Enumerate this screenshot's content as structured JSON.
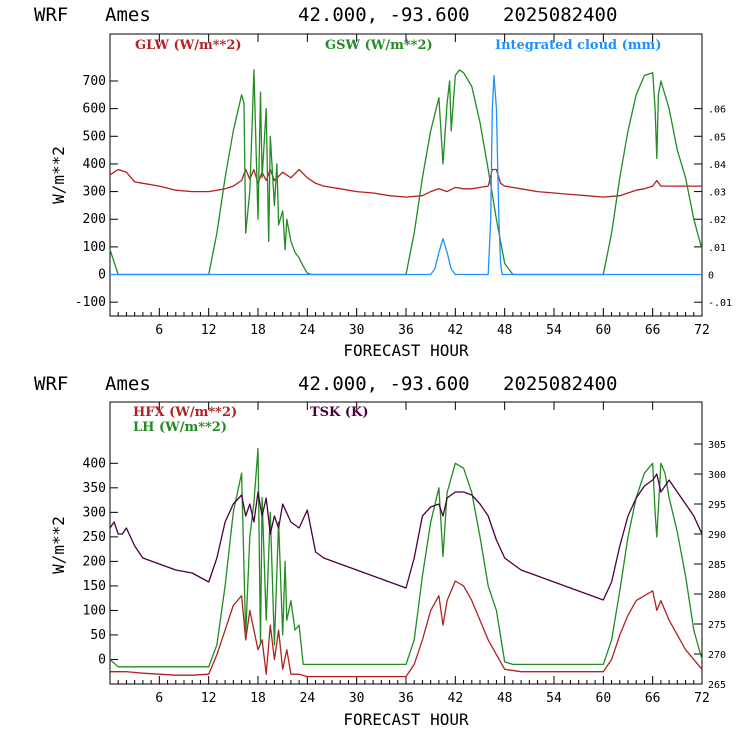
{
  "chart_data": [
    {
      "type": "line",
      "header": {
        "model": "WRF",
        "site": "Ames",
        "coords": "42.000, -93.600",
        "date": "2025082400"
      },
      "xlabel": "FORECAST HOUR",
      "ylabel": "W/m**2",
      "xlim": [
        0,
        72
      ],
      "x_ticks": [
        "6",
        "12",
        "18",
        "24",
        "30",
        "36",
        "42",
        "48",
        "54",
        "60",
        "66",
        "72"
      ],
      "ylim": [
        -150,
        870
      ],
      "y_ticks": [
        "-100",
        "0",
        "100",
        "200",
        "300",
        "400",
        "500",
        "600",
        "700"
      ],
      "y2lim": [
        -0.015,
        0.087
      ],
      "y2_ticks": [
        "-.01",
        "0",
        ".01",
        ".02",
        ".03",
        ".04",
        ".05",
        ".06"
      ],
      "legend": [
        "GLW (W/m**2)",
        "GSW (W/m**2)",
        "Integrated cloud (mm)"
      ],
      "series": [
        {
          "name": "GLW (W/m**2)",
          "color": "#b22222",
          "axis": "left",
          "x": [
            0,
            0.5,
            1,
            2,
            3,
            4,
            6,
            8,
            10,
            12,
            14,
            15,
            16,
            16.5,
            17,
            17.5,
            18,
            18.5,
            19,
            19.5,
            20,
            21,
            22,
            23,
            24,
            25,
            26,
            28,
            30,
            32,
            34,
            36,
            38,
            39,
            40,
            41,
            42,
            43,
            44,
            45,
            46,
            46.5,
            47,
            47.5,
            48,
            50,
            52,
            54,
            56,
            58,
            60,
            62,
            63,
            64,
            65,
            66,
            66.5,
            67,
            68,
            70,
            72
          ],
          "y": [
            360,
            370,
            380,
            370,
            335,
            330,
            320,
            305,
            300,
            300,
            310,
            320,
            340,
            380,
            345,
            380,
            330,
            370,
            340,
            380,
            340,
            370,
            350,
            380,
            350,
            330,
            320,
            310,
            300,
            295,
            285,
            280,
            285,
            300,
            310,
            300,
            315,
            310,
            310,
            315,
            320,
            380,
            380,
            330,
            320,
            310,
            300,
            295,
            290,
            285,
            280,
            285,
            295,
            305,
            310,
            320,
            340,
            320,
            320,
            320,
            320
          ]
        },
        {
          "name": "GSW (W/m**2)",
          "color": "#228b22",
          "axis": "left",
          "x": [
            0,
            1,
            2,
            3,
            4,
            5,
            6,
            7,
            8,
            9,
            10,
            11,
            12,
            13,
            14,
            15,
            16,
            16.3,
            16.5,
            17,
            17.3,
            17.5,
            18,
            18.3,
            18.5,
            19,
            19.3,
            19.5,
            20,
            20.3,
            20.5,
            21,
            21.3,
            21.5,
            22,
            22.5,
            23,
            23.5,
            24,
            24.5,
            25,
            26,
            28,
            30,
            32,
            34,
            36,
            37,
            38,
            39,
            40,
            40.5,
            41,
            41.3,
            41.5,
            42,
            42.5,
            43,
            44,
            45,
            46,
            47,
            48,
            49,
            50,
            51,
            52,
            54,
            56,
            58,
            60,
            61,
            62,
            63,
            64,
            65,
            66,
            66.3,
            66.5,
            66.7,
            67,
            67.5,
            68,
            69,
            70,
            71,
            72
          ],
          "y": [
            90,
            0,
            0,
            0,
            0,
            0,
            0,
            0,
            0,
            0,
            0,
            0,
            0,
            150,
            350,
            520,
            650,
            620,
            150,
            300,
            550,
            740,
            200,
            660,
            350,
            600,
            120,
            500,
            250,
            400,
            180,
            230,
            90,
            200,
            120,
            80,
            60,
            30,
            5,
            0,
            0,
            0,
            0,
            0,
            0,
            0,
            0,
            150,
            350,
            520,
            640,
            400,
            620,
            700,
            520,
            720,
            740,
            730,
            680,
            550,
            380,
            200,
            40,
            0,
            0,
            0,
            0,
            0,
            0,
            0,
            0,
            150,
            350,
            520,
            650,
            720,
            730,
            600,
            420,
            650,
            700,
            650,
            600,
            450,
            350,
            200,
            90
          ]
        },
        {
          "name": "Integrated cloud (mm)",
          "color": "#1e90ff",
          "axis": "right",
          "x": [
            0,
            39,
            39.5,
            40,
            40.5,
            41,
            41.5,
            42,
            42.5,
            46,
            46.3,
            46.5,
            46.7,
            47,
            47.3,
            47.5,
            47.7,
            48,
            72
          ],
          "y": [
            0,
            0,
            0.002,
            0.008,
            0.013,
            0.008,
            0.002,
            0,
            0,
            0,
            0.02,
            0.06,
            0.072,
            0.06,
            0.02,
            0.004,
            0,
            0,
            0
          ]
        }
      ]
    },
    {
      "type": "line",
      "header": {
        "model": "WRF",
        "site": "Ames",
        "coords": "42.000, -93.600",
        "date": "2025082400"
      },
      "xlabel": "FORECAST HOUR",
      "ylabel": "W/m**2",
      "xlim": [
        0,
        72
      ],
      "x_ticks": [
        "6",
        "12",
        "18",
        "24",
        "30",
        "36",
        "42",
        "48",
        "54",
        "60",
        "66",
        "72"
      ],
      "ylim": [
        -50,
        525
      ],
      "y_ticks": [
        "0",
        "50",
        "100",
        "150",
        "200",
        "250",
        "300",
        "350",
        "400"
      ],
      "y2lim": [
        265,
        312
      ],
      "y2_ticks": [
        "265",
        "270",
        "275",
        "280",
        "285",
        "290",
        "295",
        "300",
        "305"
      ],
      "legend": [
        "HFX (W/m**2)",
        "LH  (W/m**2)",
        "TSK (K)"
      ],
      "series": [
        {
          "name": "HFX (W/m**2)",
          "color": "#b22222",
          "axis": "left",
          "x": [
            0,
            2,
            4,
            6,
            8,
            10,
            12,
            13,
            14,
            15,
            16,
            16.5,
            17,
            17.5,
            18,
            18.5,
            19,
            19.5,
            20,
            20.5,
            21,
            21.5,
            22,
            23,
            24,
            26,
            28,
            30,
            32,
            34,
            36,
            37,
            38,
            39,
            40,
            40.5,
            41,
            42,
            43,
            44,
            45,
            46,
            47,
            48,
            50,
            52,
            54,
            56,
            58,
            60,
            61,
            62,
            63,
            64,
            65,
            66,
            66.5,
            67,
            68,
            70,
            72
          ],
          "y": [
            -25,
            -25,
            -28,
            -30,
            -32,
            -32,
            -30,
            10,
            60,
            110,
            130,
            40,
            100,
            60,
            20,
            40,
            -30,
            70,
            0,
            60,
            -20,
            20,
            -30,
            -30,
            -35,
            -35,
            -35,
            -35,
            -35,
            -35,
            -35,
            -10,
            40,
            100,
            130,
            70,
            120,
            160,
            150,
            120,
            80,
            40,
            10,
            -20,
            -25,
            -25,
            -25,
            -25,
            -25,
            -25,
            0,
            50,
            90,
            120,
            130,
            140,
            100,
            120,
            80,
            20,
            -20
          ]
        },
        {
          "name": "LH  (W/m**2)",
          "color": "#228b22",
          "axis": "left",
          "x": [
            0,
            1,
            2,
            4,
            6,
            8,
            10,
            12,
            13,
            14,
            15,
            16,
            16.5,
            17,
            17.5,
            18,
            18.3,
            18.5,
            19,
            19.5,
            20,
            20.5,
            21,
            21.3,
            21.5,
            22,
            22.5,
            23,
            23.5,
            24,
            26,
            28,
            30,
            32,
            34,
            36,
            37,
            38,
            39,
            40,
            40.5,
            41,
            41.5,
            42,
            43,
            44,
            45,
            46,
            47,
            48,
            49,
            50,
            52,
            54,
            56,
            58,
            60,
            61,
            62,
            63,
            64,
            65,
            66,
            66.3,
            66.5,
            67,
            67.5,
            68,
            69,
            70,
            71,
            72
          ],
          "y": [
            0,
            -15,
            -15,
            -15,
            -15,
            -15,
            -15,
            -15,
            30,
            150,
            300,
            380,
            50,
            250,
            320,
            430,
            30,
            330,
            80,
            300,
            30,
            280,
            50,
            200,
            80,
            120,
            60,
            70,
            -10,
            -10,
            -10,
            -10,
            -10,
            -10,
            -10,
            -10,
            40,
            170,
            280,
            350,
            210,
            340,
            370,
            400,
            390,
            340,
            250,
            150,
            100,
            -5,
            -10,
            -10,
            -10,
            -10,
            -10,
            -10,
            -10,
            40,
            140,
            250,
            330,
            380,
            400,
            300,
            250,
            400,
            380,
            330,
            260,
            170,
            60,
            0
          ]
        },
        {
          "name": "TSK (K)",
          "color": "#4b0040",
          "axis": "right",
          "x": [
            0,
            0.5,
            1,
            1.5,
            2,
            3,
            4,
            6,
            8,
            10,
            12,
            13,
            14,
            15,
            16,
            16.5,
            17,
            17.5,
            18,
            18.5,
            19,
            19.5,
            20,
            20.5,
            21,
            22,
            23,
            24,
            25,
            26,
            28,
            30,
            32,
            34,
            36,
            37,
            38,
            39,
            40,
            40.5,
            41,
            42,
            43,
            44,
            45,
            46,
            47,
            48,
            50,
            52,
            54,
            56,
            58,
            60,
            61,
            62,
            63,
            64,
            65,
            66,
            66.5,
            67,
            68,
            69,
            70,
            71,
            72
          ],
          "y": [
            291,
            292,
            290,
            290,
            291,
            288,
            286,
            285,
            284,
            283.5,
            282,
            286,
            292,
            295,
            296.5,
            293,
            295,
            292,
            297,
            293,
            296,
            290,
            293,
            291,
            295,
            292,
            291,
            294,
            287,
            286,
            285,
            284,
            283,
            282,
            281,
            286,
            293,
            294.5,
            295,
            293,
            296,
            297,
            297,
            296.5,
            295,
            293,
            289,
            286,
            284,
            283,
            282,
            281,
            280,
            279,
            282,
            288,
            293,
            296,
            298,
            299,
            300,
            297,
            299,
            297,
            295,
            293,
            290
          ]
        }
      ]
    }
  ]
}
